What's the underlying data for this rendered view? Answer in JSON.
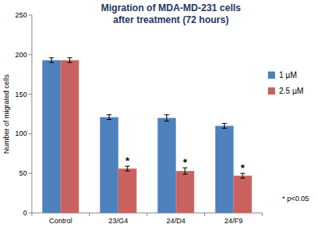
{
  "chart_data": {
    "type": "bar",
    "title": "Migration of MDA-MD-231 cells",
    "subtitle": "after treatment (72 hours)",
    "y_label": "Number of migrated cells",
    "categories": [
      "Control",
      "23/G4",
      "24/D4",
      "24/F9"
    ],
    "series": [
      {
        "name": "1 µM",
        "color": "#4f81bd",
        "values": [
          193,
          121,
          120,
          110
        ],
        "errors": [
          3,
          3,
          4,
          3
        ]
      },
      {
        "name": "2.5 µM",
        "color": "#c9625f",
        "values": [
          193,
          56,
          53,
          47
        ],
        "errors": [
          3,
          3,
          4,
          3
        ],
        "significance": [
          null,
          "*",
          "*",
          "*"
        ]
      }
    ],
    "ylim": [
      0,
      250
    ],
    "yticks": [
      0,
      50,
      100,
      150,
      200,
      250
    ],
    "grid": false,
    "legend": "right",
    "note": "* p<0.05"
  }
}
